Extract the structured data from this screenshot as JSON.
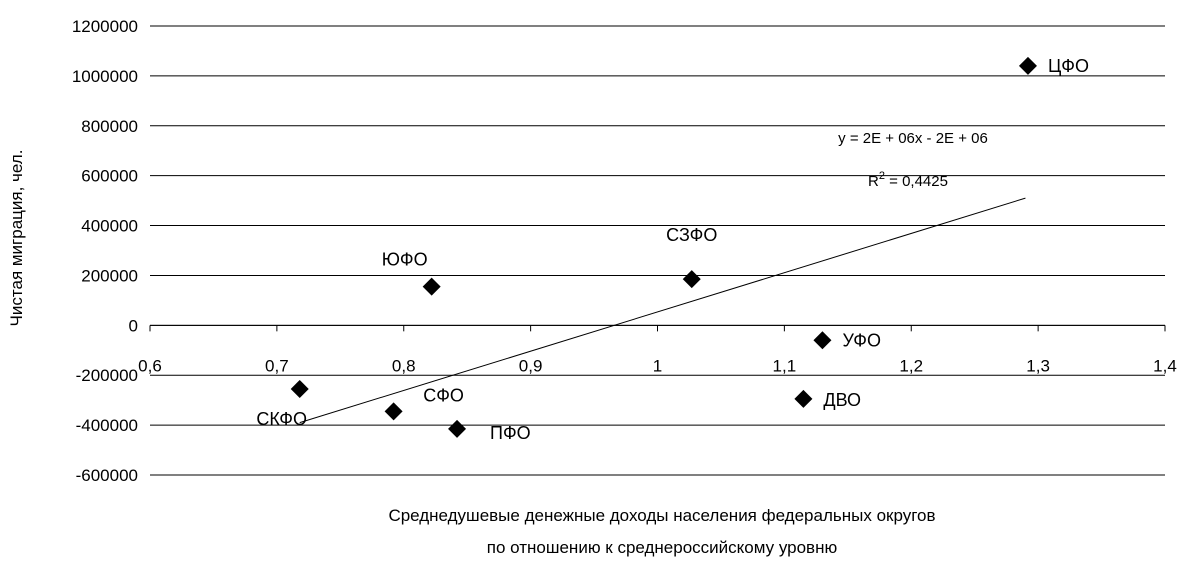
{
  "chart_data": {
    "type": "scatter",
    "title": "",
    "xlabel_lines": [
      "Среднедушевые денежные доходы населения федеральных округов",
      "по отношению к среднероссийскому уровню"
    ],
    "ylabel": "Чистая миграция, чел.",
    "xlim": [
      0.6,
      1.4
    ],
    "ylim": [
      -600000,
      1200000
    ],
    "x_ticks": [
      0.6,
      0.7,
      0.8,
      0.9,
      1.0,
      1.1,
      1.2,
      1.3,
      1.4
    ],
    "x_tick_labels": [
      "0,6",
      "0,7",
      "0,8",
      "0,9",
      "1",
      "1,1",
      "1,2",
      "1,3",
      "1,4"
    ],
    "y_ticks": [
      1200000,
      1000000,
      800000,
      600000,
      400000,
      200000,
      0,
      -200000,
      -400000,
      -600000
    ],
    "y_tick_labels": [
      "1200000",
      "1000000",
      "800000",
      "600000",
      "400000",
      "200000",
      "0",
      "-200000",
      "-400000",
      "-600000"
    ],
    "grid": "horizontal",
    "marker": "diamond",
    "points": [
      {
        "label": "ЦФО",
        "x": 1.292,
        "y": 1040000
      },
      {
        "label": "СЗФО",
        "x": 1.027,
        "y": 185000
      },
      {
        "label": "ЮФО",
        "x": 0.822,
        "y": 155000
      },
      {
        "label": "УФО",
        "x": 1.13,
        "y": -60000
      },
      {
        "label": "СКФО",
        "x": 0.718,
        "y": -255000
      },
      {
        "label": "ДВО",
        "x": 1.115,
        "y": -295000
      },
      {
        "label": "СФО",
        "x": 0.792,
        "y": -345000
      },
      {
        "label": "ПФО",
        "x": 0.842,
        "y": -415000
      }
    ],
    "trendline": {
      "type": "linear",
      "from": {
        "x": 0.718,
        "y": -390000
      },
      "to": {
        "x": 1.29,
        "y": 510000
      },
      "equation": "y = 2E + 06x - 2E + 06",
      "r2_prefix": "R",
      "r2_sup": "2",
      "r2_value": " = 0,4425"
    }
  }
}
